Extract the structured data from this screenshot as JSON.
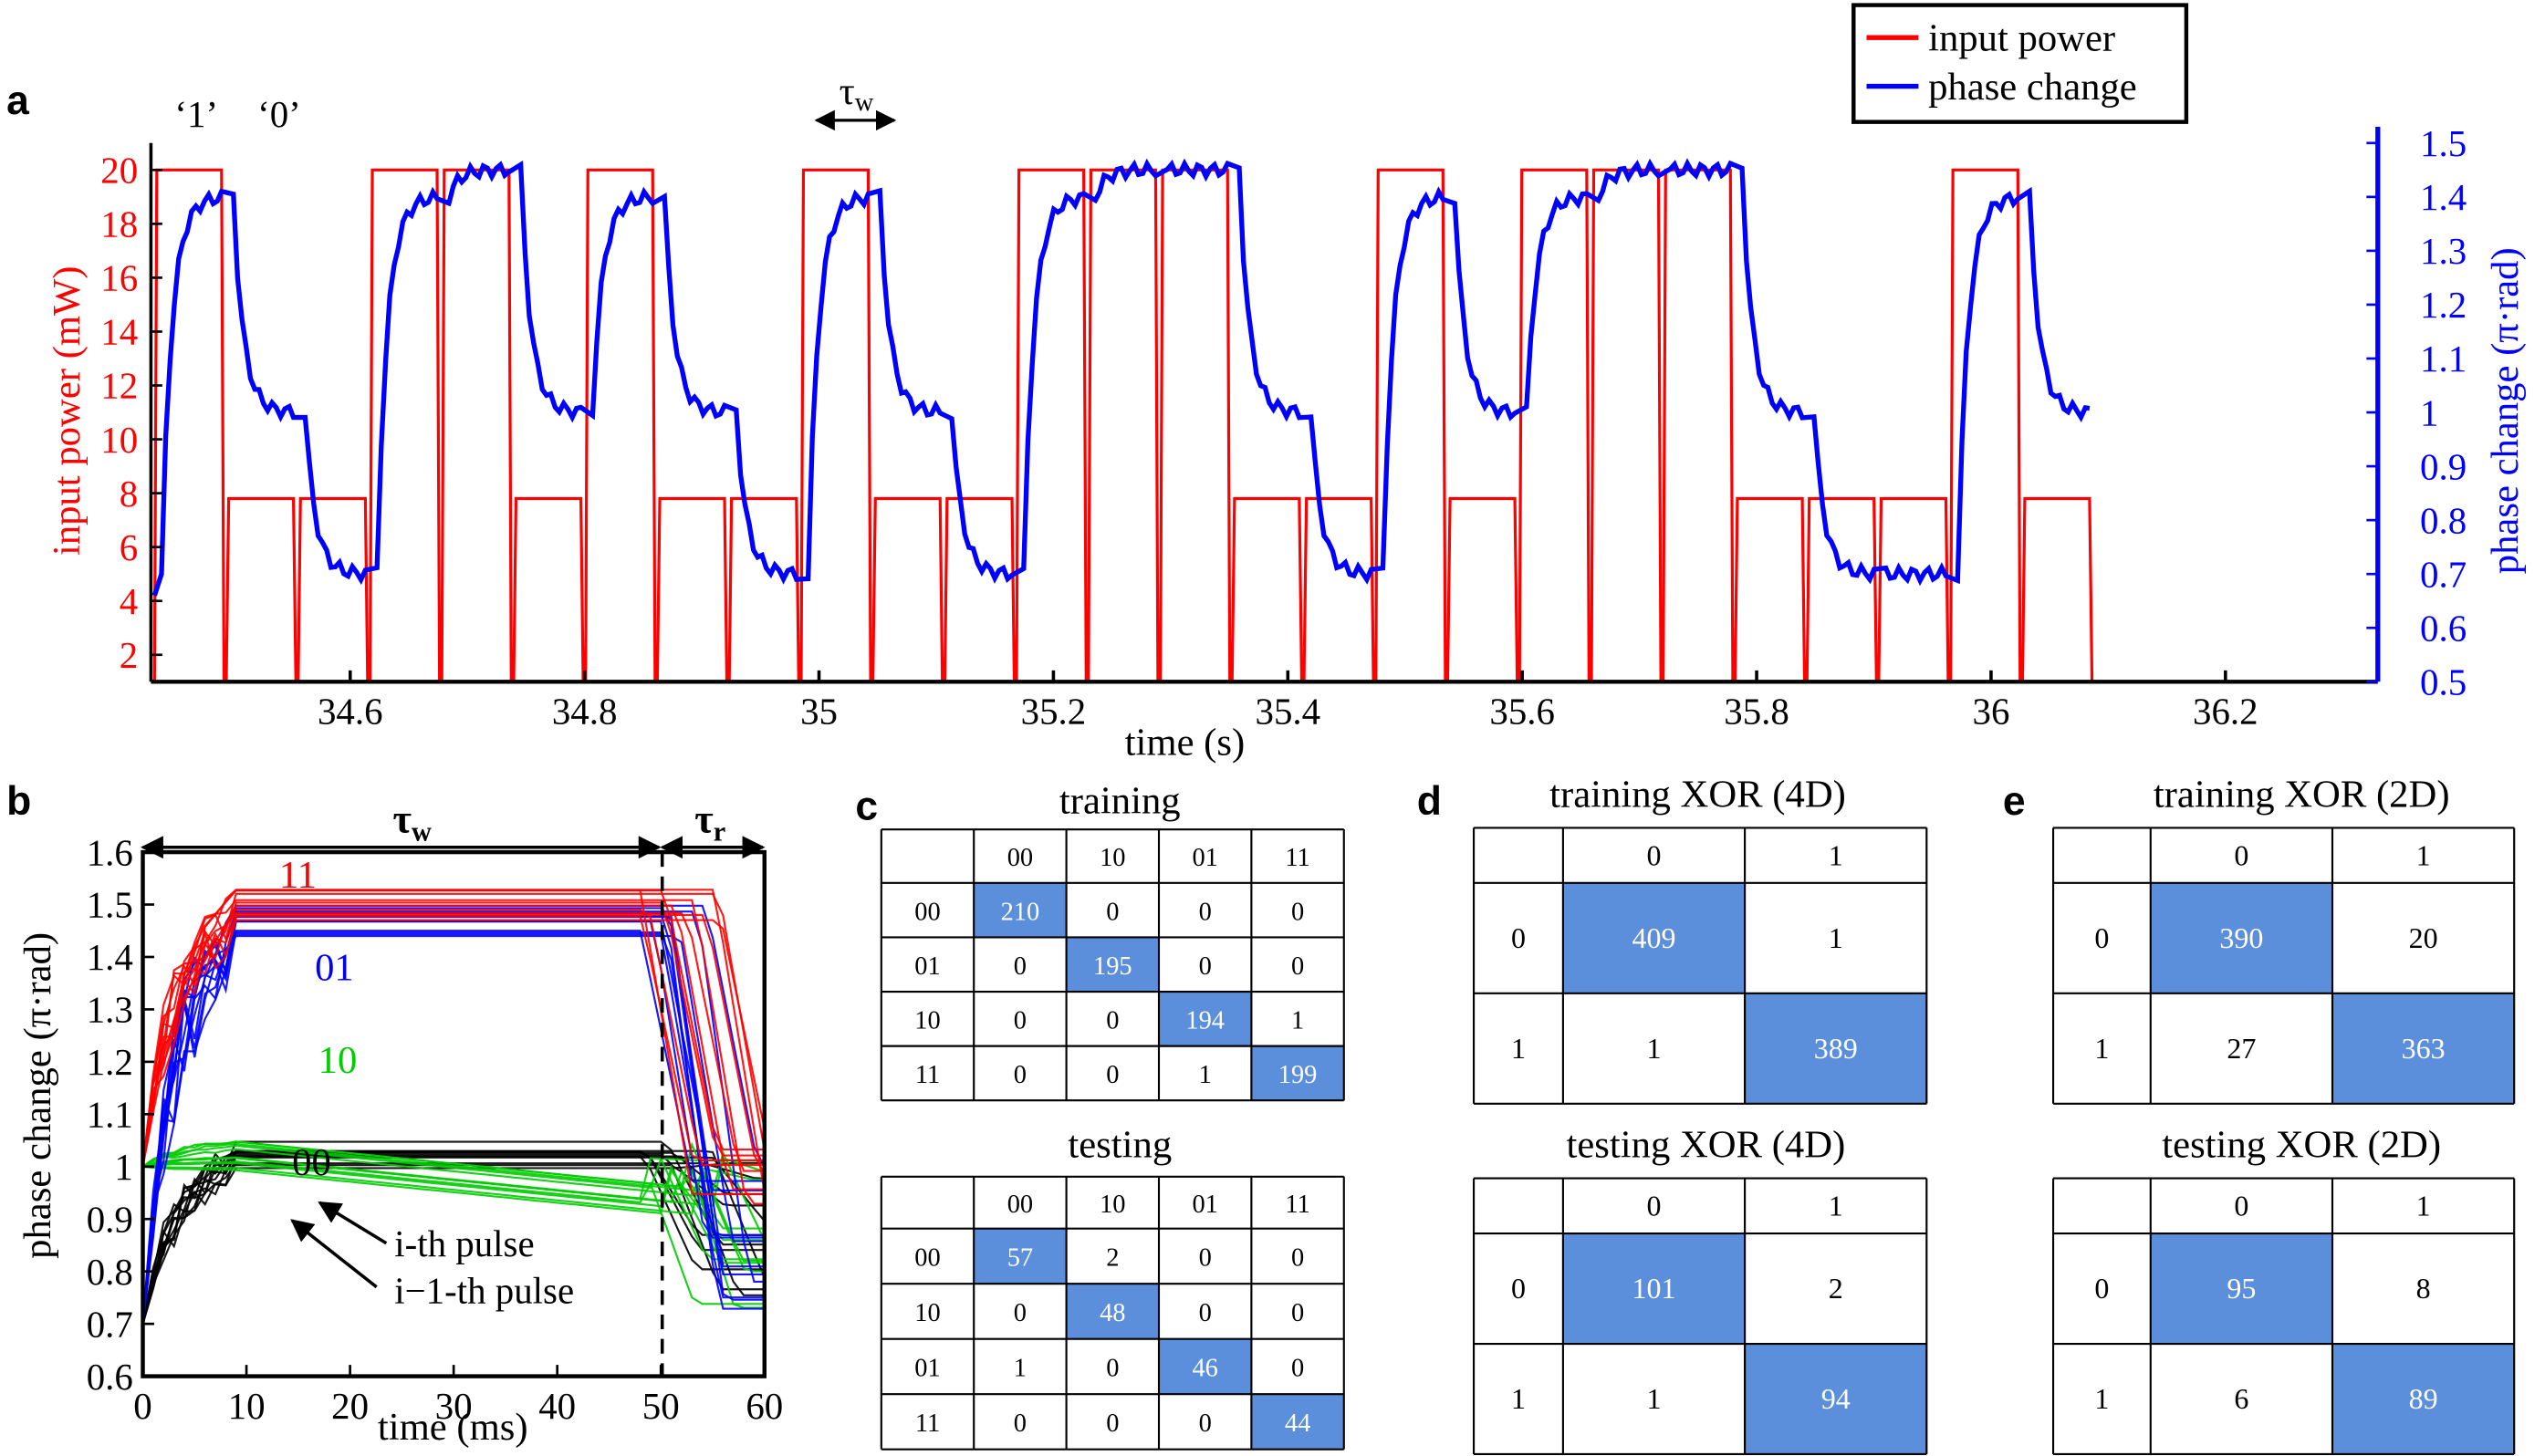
{
  "panel_labels": {
    "a": "a",
    "b": "b",
    "c": "c",
    "d": "d",
    "e": "e"
  },
  "colors": {
    "red": "#ff0000",
    "blue": "#0000ff",
    "green": "#00cc00",
    "black": "#000000",
    "highlight": "#5b8fdc"
  },
  "panel_a": {
    "xlabel": "time (s)",
    "ylabel_left": "input power (mW)",
    "ylabel_right": "phase change (π·rad)",
    "xticks": [
      "34.6",
      "34.8",
      "35",
      "35.2",
      "35.4",
      "35.6",
      "35.8",
      "36",
      "36.2"
    ],
    "xtick_values": [
      34.6,
      34.8,
      35.0,
      35.2,
      35.4,
      35.6,
      35.8,
      36.0,
      36.2
    ],
    "yticks_left": [
      "2",
      "4",
      "6",
      "8",
      "10",
      "12",
      "14",
      "16",
      "18",
      "20"
    ],
    "yticks_right": [
      "0.5",
      "0.6",
      "0.7",
      "0.8",
      "0.9",
      "1",
      "1.1",
      "1.2",
      "1.3",
      "1.4",
      "1.5"
    ],
    "legend": {
      "input": "input power",
      "phase": "phase change"
    },
    "annot_one": "‘1’",
    "annot_zero": "‘0’",
    "tau_w": "τ",
    "tau_w_sub": "w"
  },
  "panel_b": {
    "xlabel": "time (ms)",
    "ylabel": "phase change (π·rad)",
    "xticks": [
      "0",
      "10",
      "20",
      "30",
      "40",
      "50",
      "60"
    ],
    "yticks": [
      "0.6",
      "0.7",
      "0.8",
      "0.9",
      "1",
      "1.1",
      "1.2",
      "1.3",
      "1.4",
      "1.5",
      "1.6"
    ],
    "tau_w": "τ",
    "tau_w_sub": "w",
    "tau_r": "τ",
    "tau_r_sub": "r",
    "label_11": "11",
    "label_01": "01",
    "label_10": "10",
    "label_00": "00",
    "arrow_i": "i-th pulse",
    "arrow_i1": "i−1-th pulse"
  },
  "panel_c": {
    "training": {
      "title": "training",
      "headers": [
        "00",
        "10",
        "01",
        "11"
      ],
      "rows": [
        {
          "label": "00",
          "cells": [
            "210",
            "0",
            "0",
            "0"
          ]
        },
        {
          "label": "01",
          "cells": [
            "0",
            "195",
            "0",
            "0"
          ]
        },
        {
          "label": "10",
          "cells": [
            "0",
            "0",
            "194",
            "1"
          ]
        },
        {
          "label": "11",
          "cells": [
            "0",
            "0",
            "1",
            "199"
          ]
        }
      ]
    },
    "testing": {
      "title": "testing",
      "headers": [
        "00",
        "10",
        "01",
        "11"
      ],
      "rows": [
        {
          "label": "00",
          "cells": [
            "57",
            "2",
            "0",
            "0"
          ]
        },
        {
          "label": "10",
          "cells": [
            "0",
            "48",
            "0",
            "0"
          ]
        },
        {
          "label": "01",
          "cells": [
            "1",
            "0",
            "46",
            "0"
          ]
        },
        {
          "label": "11",
          "cells": [
            "0",
            "0",
            "0",
            "44"
          ]
        }
      ]
    }
  },
  "panel_d": {
    "training": {
      "title": "training XOR (4D)",
      "headers": [
        "0",
        "1"
      ],
      "rows": [
        {
          "label": "0",
          "cells": [
            "409",
            "1"
          ]
        },
        {
          "label": "1",
          "cells": [
            "1",
            "389"
          ]
        }
      ]
    },
    "testing": {
      "title": "testing XOR (4D)",
      "headers": [
        "0",
        "1"
      ],
      "rows": [
        {
          "label": "0",
          "cells": [
            "101",
            "2"
          ]
        },
        {
          "label": "1",
          "cells": [
            "1",
            "94"
          ]
        }
      ]
    }
  },
  "panel_e": {
    "training": {
      "title": "training XOR (2D)",
      "headers": [
        "0",
        "1"
      ],
      "rows": [
        {
          "label": "0",
          "cells": [
            "390",
            "20"
          ]
        },
        {
          "label": "1",
          "cells": [
            "27",
            "363"
          ]
        }
      ]
    },
    "testing": {
      "title": "testing XOR (2D)",
      "headers": [
        "0",
        "1"
      ],
      "rows": [
        {
          "label": "0",
          "cells": [
            "95",
            "8"
          ]
        },
        {
          "label": "1",
          "cells": [
            "6",
            "89"
          ]
        }
      ]
    }
  },
  "chart_data": [
    {
      "type": "line",
      "panel": "a",
      "xlabel": "time (s)",
      "xlim": [
        34.43,
        36.33
      ],
      "bit_period": 0.0613,
      "bits": [
        "1",
        "0",
        "0",
        "1",
        "1",
        "0",
        "1",
        "0",
        "0",
        "1",
        "0",
        "0",
        "1",
        "1",
        "1",
        "0",
        "0",
        "1",
        "0",
        "1",
        "1",
        "1",
        "0",
        "0",
        "0",
        "1",
        "0"
      ],
      "series": [
        {
          "name": "input power",
          "axis": "left",
          "ylabel": "input power (mW)",
          "ylim": [
            1,
            21
          ],
          "high": 20,
          "low": 7.8,
          "gap": 1
        },
        {
          "name": "phase change",
          "axis": "right",
          "ylabel": "phase change (π·rad)",
          "ylim": [
            0.5,
            1.5
          ],
          "after_1_level": 1.4,
          "after_11_level": 1.45,
          "after_0_level": 1.0,
          "after_00_level": 0.7
        }
      ]
    },
    {
      "type": "line",
      "panel": "b",
      "xlabel": "time (ms)",
      "ylabel": "phase change (π·rad)",
      "xlim": [
        0,
        60
      ],
      "ylim": [
        0.6,
        1.6
      ],
      "grid": false,
      "series": [
        {
          "name": "11",
          "start": 1.0,
          "plateau": 1.5
        },
        {
          "name": "01",
          "start": 0.7,
          "plateau": 1.47
        },
        {
          "name": "10",
          "start": 1.0,
          "plateau": 1.02
        },
        {
          "name": "00",
          "start": 0.7,
          "plateau": 1.02
        }
      ]
    },
    {
      "type": "table",
      "panel": "c",
      "title": "training",
      "columns": [
        "00",
        "10",
        "01",
        "11"
      ],
      "rows": [
        "00",
        "01",
        "10",
        "11"
      ],
      "values": [
        [
          210,
          0,
          0,
          0
        ],
        [
          0,
          195,
          0,
          0
        ],
        [
          0,
          0,
          194,
          1
        ],
        [
          0,
          0,
          1,
          199
        ]
      ]
    },
    {
      "type": "table",
      "panel": "c",
      "title": "testing",
      "columns": [
        "00",
        "10",
        "01",
        "11"
      ],
      "rows": [
        "00",
        "10",
        "01",
        "11"
      ],
      "values": [
        [
          57,
          2,
          0,
          0
        ],
        [
          0,
          48,
          0,
          0
        ],
        [
          1,
          0,
          46,
          0
        ],
        [
          0,
          0,
          0,
          44
        ]
      ]
    },
    {
      "type": "table",
      "panel": "d",
      "title": "training XOR (4D)",
      "columns": [
        "0",
        "1"
      ],
      "rows": [
        "0",
        "1"
      ],
      "values": [
        [
          409,
          1
        ],
        [
          1,
          389
        ]
      ]
    },
    {
      "type": "table",
      "panel": "d",
      "title": "testing XOR (4D)",
      "columns": [
        "0",
        "1"
      ],
      "rows": [
        "0",
        "1"
      ],
      "values": [
        [
          101,
          2
        ],
        [
          1,
          94
        ]
      ]
    },
    {
      "type": "table",
      "panel": "e",
      "title": "training XOR (2D)",
      "columns": [
        "0",
        "1"
      ],
      "rows": [
        "0",
        "1"
      ],
      "values": [
        [
          390,
          20
        ],
        [
          27,
          363
        ]
      ]
    },
    {
      "type": "table",
      "panel": "e",
      "title": "testing XOR (2D)",
      "columns": [
        "0",
        "1"
      ],
      "rows": [
        "0",
        "1"
      ],
      "values": [
        [
          95,
          8
        ],
        [
          6,
          89
        ]
      ]
    }
  ]
}
